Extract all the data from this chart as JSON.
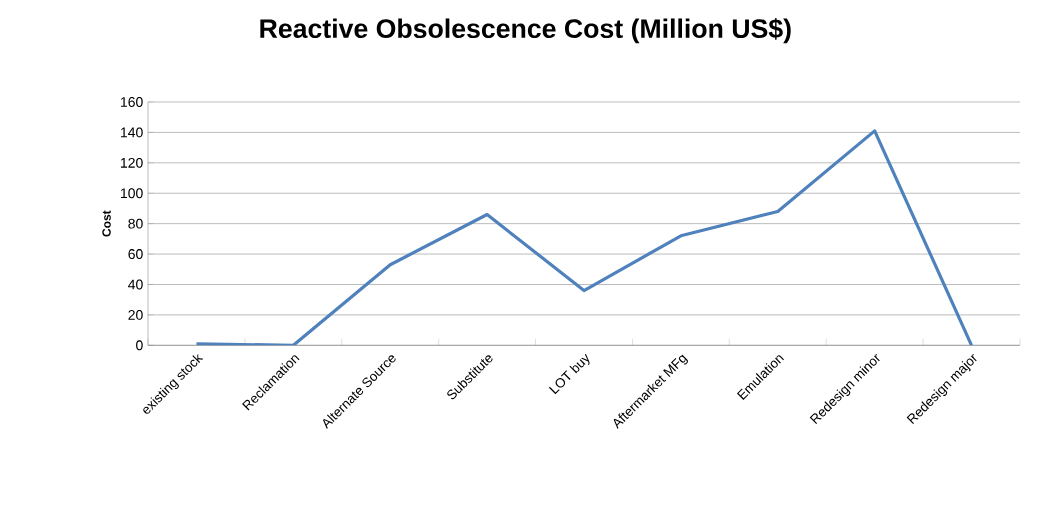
{
  "chart_data": {
    "type": "line",
    "title": "Reactive Obsolescence Cost (Million US$)",
    "ylabel": "Cost",
    "categories": [
      "existing stock",
      "Reclamation",
      "Alternate Source",
      "Substitute",
      "LOT buy",
      "Aftermarket MFg",
      "Emulation",
      "Redesign minor",
      "Redesign major"
    ],
    "series": [
      {
        "color": "#4f81bd",
        "values": [
          1,
          0,
          53,
          86,
          36,
          72,
          88,
          141,
          0
        ]
      }
    ],
    "ylim": [
      0,
      160
    ],
    "yticks": [
      0,
      20,
      40,
      60,
      80,
      100,
      120,
      140,
      160
    ],
    "grid": "y",
    "marker": "none",
    "line_style": "solid"
  }
}
